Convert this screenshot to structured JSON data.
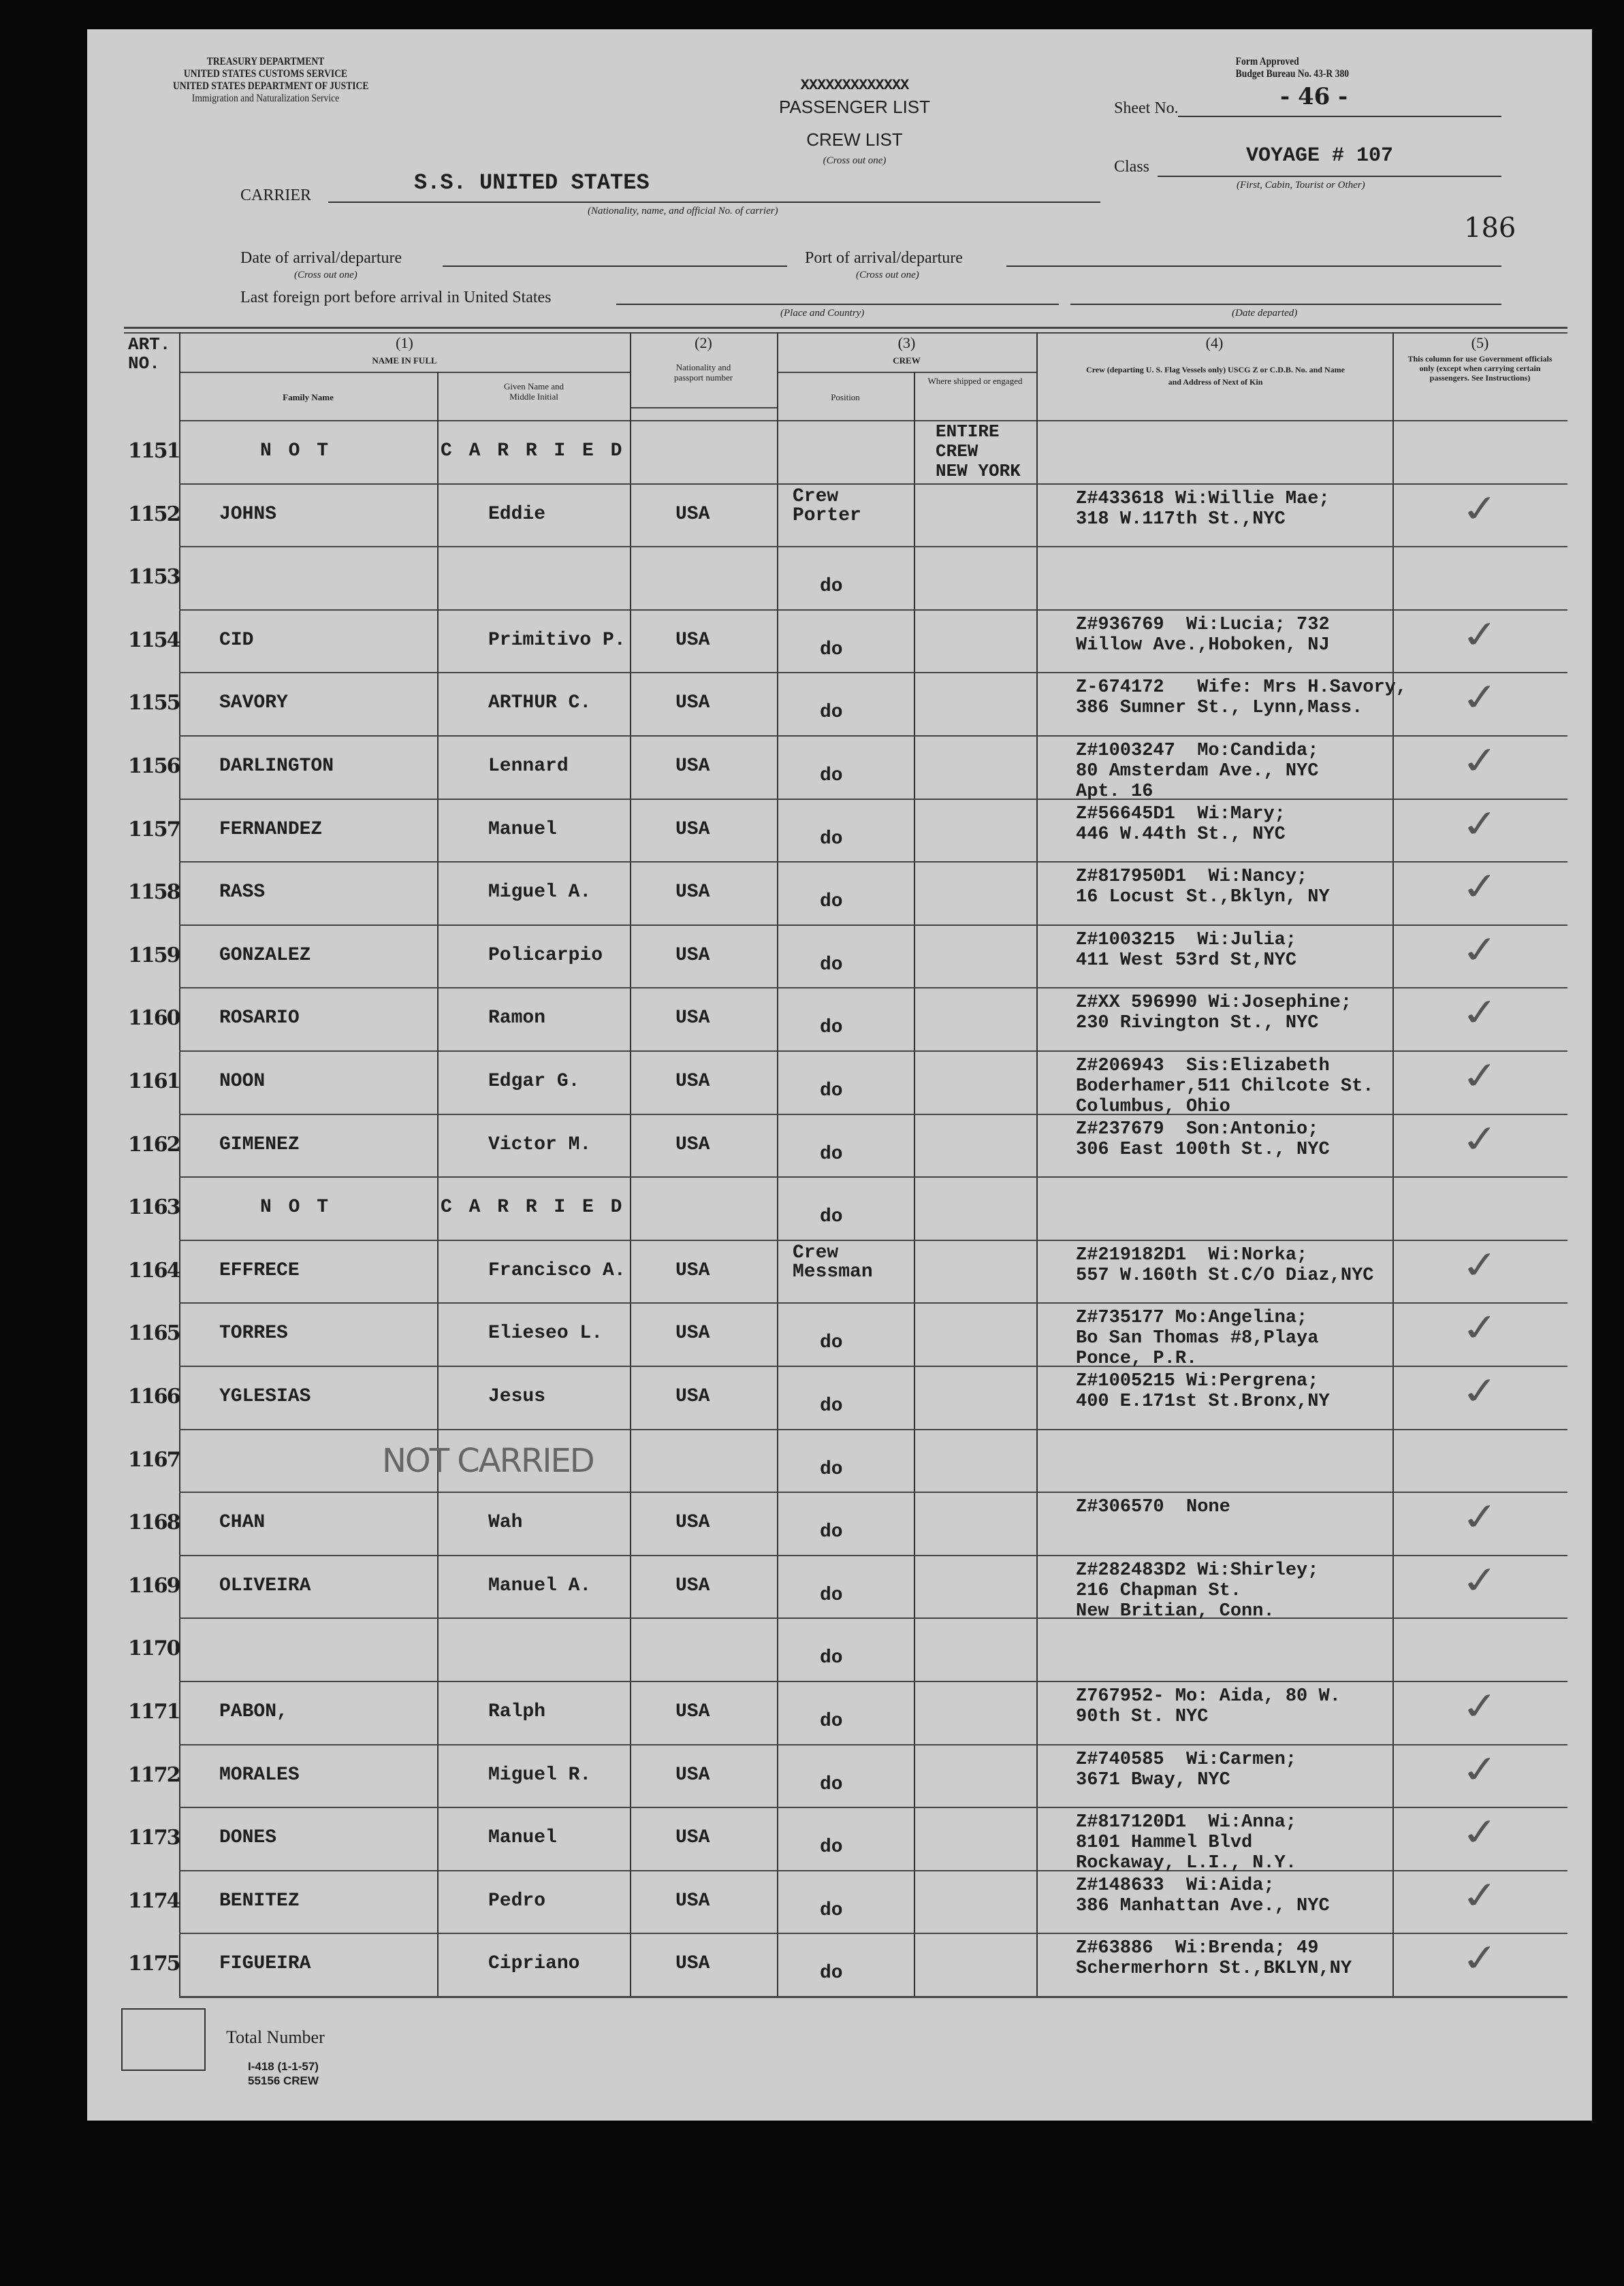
{
  "header": {
    "agency_lines": [
      "TREASURY DEPARTMENT",
      "UNITED STATES CUSTOMS SERVICE",
      "UNITED STATES DEPARTMENT OF JUSTICE",
      "Immigration and Naturalization Service"
    ],
    "form_approved": [
      "Form Approved",
      "Budget Bureau No. 43-R 380"
    ],
    "list_type_struck": "PASSENGER LIST",
    "list_type_strike_marks": "XXXXXXXXXXXXX",
    "list_type": "CREW LIST",
    "cross_out_one": "(Cross out one)",
    "sheet_no_label": "Sheet No.",
    "sheet_no": "- 46 -",
    "class_label": "Class",
    "class_value": "VOYAGE # 107",
    "class_hint": "(First, Cabin, Tourist or Other)",
    "carrier_label": "CARRIER",
    "carrier_value": "S.S. UNITED STATES",
    "carrier_hint": "(Nationality, name, and official No. of carrier)",
    "page_number": "186",
    "date_label": "Date of arrival/departure",
    "date_hint": "(Cross out one)",
    "port_label": "Port of arrival/departure",
    "port_hint": "(Cross out one)",
    "last_port_label": "Last foreign port before arrival in United States",
    "place_hint": "(Place and Country)",
    "date_departed_hint": "(Date departed)"
  },
  "table_header": {
    "art_no": "ART. NO.",
    "col1_num": "(1)",
    "col1_title": "NAME IN FULL",
    "family_name": "Family Name",
    "given_name": "Given Name and Middle Initial",
    "col2_num": "(2)",
    "col2_title": "Nationality and passport number",
    "col3_num": "(3)",
    "col3_title": "CREW",
    "position": "Position",
    "where_shipped": "Where shipped or engaged",
    "col4_num": "(4)",
    "col4_title": "Crew (departing U. S. Flag Vessels only) USCG Z or C.D.B. No. and Name and Address of Next of Kin",
    "col5_num": "(5)",
    "col5_title": "This column for use Government officials only (except when carrying certain passengers. See Instructions)"
  },
  "shipped_note": [
    "ENTIRE",
    "CREW",
    "NEW YORK"
  ],
  "not_carried_stamp": "NOT CARRIED",
  "rows": [
    {
      "art": "1151",
      "family": "N O T",
      "given": "C A R R I E D",
      "nat": "",
      "position": "",
      "kin": "",
      "check": false
    },
    {
      "art": "1152",
      "family": "JOHNS",
      "given": "Eddie",
      "nat": "USA",
      "position": "Crew\nPorter",
      "kin": "Z#433618 Wi:Willie Mae;\n318 W.117th St.,NYC",
      "check": true
    },
    {
      "art": "1153",
      "family": "",
      "given": "",
      "nat": "",
      "position": "do",
      "kin": "",
      "check": false
    },
    {
      "art": "1154",
      "family": "CID",
      "given": "Primitivo P.",
      "nat": "USA",
      "position": "do",
      "kin": "Z#936769  Wi:Lucia; 732\nWillow Ave.,Hoboken, NJ",
      "check": true
    },
    {
      "art": "1155",
      "family": "SAVORY",
      "given": "ARTHUR C.",
      "nat": "USA",
      "position": "do",
      "kin": "Z-674172   Wife: Mrs H.Savory,\n386 Sumner St., Lynn,Mass.",
      "check": true
    },
    {
      "art": "1156",
      "family": "DARLINGTON",
      "given": "Lennard",
      "nat": "USA",
      "position": "do",
      "kin": "Z#1003247  Mo:Candida;\n80 Amsterdam Ave., NYC\nApt. 16",
      "check": true
    },
    {
      "art": "1157",
      "family": "FERNANDEZ",
      "given": "Manuel",
      "nat": "USA",
      "position": "do",
      "kin": "Z#56645D1  Wi:Mary;\n446 W.44th St., NYC",
      "check": true
    },
    {
      "art": "1158",
      "family": "RASS",
      "given": "Miguel A.",
      "nat": "USA",
      "position": "do",
      "kin": "Z#817950D1  Wi:Nancy;\n16 Locust St.,Bklyn, NY",
      "check": true
    },
    {
      "art": "1159",
      "family": "GONZALEZ",
      "given": "Policarpio",
      "nat": "USA",
      "position": "do",
      "kin": "Z#1003215  Wi:Julia;\n411 West 53rd St,NYC",
      "check": true
    },
    {
      "art": "1160",
      "family": "ROSARIO",
      "given": "Ramon",
      "nat": "USA",
      "position": "do",
      "kin": "Z#XX 596990 Wi:Josephine;\n230 Rivington St., NYC",
      "check": true
    },
    {
      "art": "1161",
      "family": "NOON",
      "given": "Edgar G.",
      "nat": "USA",
      "position": "do",
      "kin": "Z#206943  Sis:Elizabeth\nBoderhamer,511 Chilcote St.\nColumbus, Ohio",
      "check": true
    },
    {
      "art": "1162",
      "family": "GIMENEZ",
      "given": "Victor M.",
      "nat": "USA",
      "position": "do",
      "kin": "Z#237679  Son:Antonio;\n306 East 100th St., NYC",
      "check": true
    },
    {
      "art": "1163",
      "family": "N O T",
      "given": "C A R R I E D",
      "nat": "",
      "position": "do",
      "kin": "",
      "check": false
    },
    {
      "art": "1164",
      "family": "EFFRECE",
      "given": "Francisco A.",
      "nat": "USA",
      "position": "Crew\nMessman",
      "kin": "Z#219182D1  Wi:Norka;\n557 W.160th St.C/O Diaz,NYC",
      "check": true
    },
    {
      "art": "1165",
      "family": "TORRES",
      "given": "Elieseo L.",
      "nat": "USA",
      "position": "do",
      "kin": "Z#735177 Mo:Angelina;\nBo San Thomas #8,Playa\nPonce, P.R.",
      "check": true
    },
    {
      "art": "1166",
      "family": "YGLESIAS",
      "given": "Jesus",
      "nat": "USA",
      "position": "do",
      "kin": "Z#1005215 Wi:Pergrena;\n400 E.171st St.Bronx,NY",
      "check": true
    },
    {
      "art": "1167",
      "family": "",
      "given": "",
      "nat": "",
      "position": "do",
      "kin": "",
      "check": false
    },
    {
      "art": "1168",
      "family": "CHAN",
      "given": "Wah",
      "nat": "USA",
      "position": "do",
      "kin": "Z#306570  None",
      "check": true
    },
    {
      "art": "1169",
      "family": "OLIVEIRA",
      "given": "Manuel A.",
      "nat": "USA",
      "position": "do",
      "kin": "Z#282483D2 Wi:Shirley;\n216 Chapman St.\nNew Britian, Conn.",
      "check": true
    },
    {
      "art": "1170",
      "family": "",
      "given": "",
      "nat": "",
      "position": "do",
      "kin": "",
      "check": false
    },
    {
      "art": "1171",
      "family": "PABON,",
      "given": "Ralph",
      "nat": "USA",
      "position": "do",
      "kin": "Z767952- Mo: Aida, 80 W.\n90th St. NYC",
      "check": true
    },
    {
      "art": "1172",
      "family": "MORALES",
      "given": "Miguel R.",
      "nat": "USA",
      "position": "do",
      "kin": "Z#740585  Wi:Carmen;\n3671 Bway, NYC",
      "check": true
    },
    {
      "art": "1173",
      "family": "DONES",
      "given": "Manuel",
      "nat": "USA",
      "position": "do",
      "kin": "Z#817120D1  Wi:Anna;\n8101 Hammel Blvd\nRockaway, L.I., N.Y.",
      "check": true
    },
    {
      "art": "1174",
      "family": "BENITEZ",
      "given": "Pedro",
      "nat": "USA",
      "position": "do",
      "kin": "Z#148633  Wi:Aida;\n386 Manhattan Ave., NYC",
      "check": true
    },
    {
      "art": "1175",
      "family": "FIGUEIRA",
      "given": "Cipriano",
      "nat": "USA",
      "position": "do",
      "kin": "Z#63886  Wi:Brenda; 49\nSchermerhorn St.,BKLYN,NY",
      "check": true
    }
  ],
  "footer": {
    "total_label": "Total Number",
    "form_number": "I-418 (1-1-57)",
    "form_code": "55156 CREW"
  }
}
